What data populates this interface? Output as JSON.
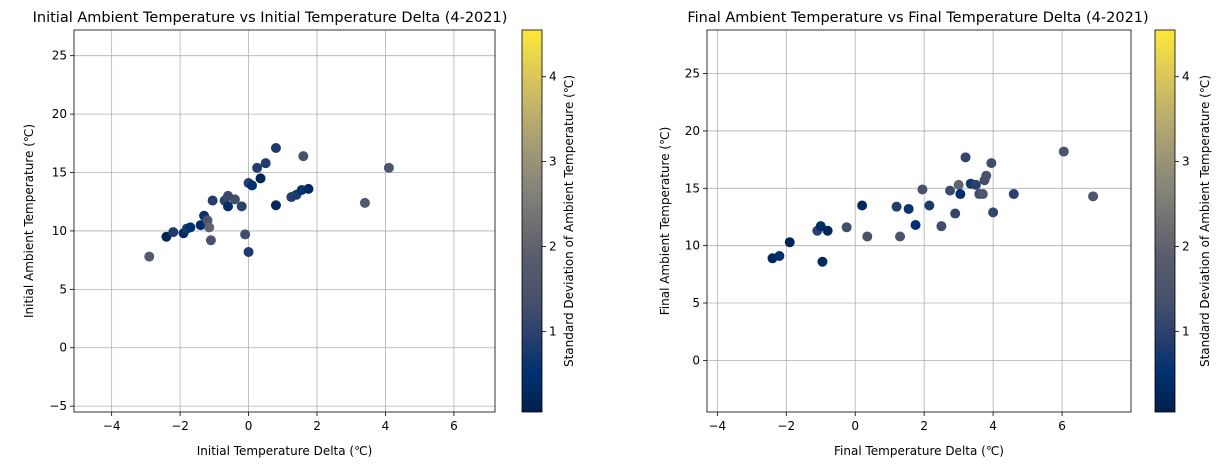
{
  "colorscale": {
    "name": "cividis",
    "stops": [
      "#00204d",
      "#00306f",
      "#2a3f6d",
      "#48526b",
      "#575c6d",
      "#707173",
      "#8a8779",
      "#a59c74",
      "#c3b369",
      "#e1cc55",
      "#fee838"
    ]
  },
  "chart_data": [
    {
      "type": "scatter",
      "title": "Initial Ambient Temperature vs Initial Temperature Delta (4-2021)",
      "xlabel": "Initial Temperature Delta (℃)",
      "ylabel": "Initial Ambient Temperature (℃)",
      "xlim": [
        -5.1,
        7.2
      ],
      "ylim": [
        -5.5,
        27.2
      ],
      "xticks": [
        -4,
        -2,
        0,
        2,
        4,
        6
      ],
      "yticks": [
        -5,
        0,
        5,
        10,
        15,
        20,
        25
      ],
      "grid": true,
      "colorbar": {
        "label": "Standard Deviation of Ambient Temperature (℃)",
        "range": [
          0.05,
          4.55
        ],
        "ticks": [
          1,
          2,
          3,
          4
        ]
      },
      "points": [
        {
          "x": -2.9,
          "y": 7.8,
          "c": 1.8
        },
        {
          "x": -2.4,
          "y": 9.5,
          "c": 0.15
        },
        {
          "x": -2.2,
          "y": 9.9,
          "c": 0.8
        },
        {
          "x": -1.9,
          "y": 9.8,
          "c": 0.3
        },
        {
          "x": -1.8,
          "y": 10.2,
          "c": 0.7
        },
        {
          "x": -1.7,
          "y": 10.3,
          "c": 0.5
        },
        {
          "x": -1.4,
          "y": 10.5,
          "c": 0.4
        },
        {
          "x": -1.3,
          "y": 11.3,
          "c": 0.6
        },
        {
          "x": -1.2,
          "y": 10.9,
          "c": 1.6
        },
        {
          "x": -1.15,
          "y": 10.3,
          "c": 2.0
        },
        {
          "x": -1.1,
          "y": 9.2,
          "c": 1.5
        },
        {
          "x": -1.05,
          "y": 12.6,
          "c": 0.9
        },
        {
          "x": -0.7,
          "y": 12.6,
          "c": 1.0
        },
        {
          "x": -0.6,
          "y": 12.1,
          "c": 0.4
        },
        {
          "x": -0.6,
          "y": 13.0,
          "c": 1.2
        },
        {
          "x": -0.4,
          "y": 12.7,
          "c": 1.3
        },
        {
          "x": -0.2,
          "y": 12.1,
          "c": 1.0
        },
        {
          "x": -0.1,
          "y": 9.7,
          "c": 1.3
        },
        {
          "x": 0.0,
          "y": 8.2,
          "c": 0.8
        },
        {
          "x": 0.0,
          "y": 14.1,
          "c": 0.9
        },
        {
          "x": 0.1,
          "y": 13.9,
          "c": 0.5
        },
        {
          "x": 0.25,
          "y": 15.4,
          "c": 0.9
        },
        {
          "x": 0.35,
          "y": 14.5,
          "c": 0.2
        },
        {
          "x": 0.5,
          "y": 15.8,
          "c": 0.9
        },
        {
          "x": 0.8,
          "y": 17.1,
          "c": 0.8
        },
        {
          "x": 0.8,
          "y": 12.2,
          "c": 0.25
        },
        {
          "x": 1.25,
          "y": 12.9,
          "c": 0.9
        },
        {
          "x": 1.4,
          "y": 13.1,
          "c": 0.8
        },
        {
          "x": 1.55,
          "y": 13.5,
          "c": 0.6
        },
        {
          "x": 1.6,
          "y": 16.4,
          "c": 1.4
        },
        {
          "x": 1.75,
          "y": 13.6,
          "c": 0.3
        },
        {
          "x": 3.4,
          "y": 12.4,
          "c": 1.7
        },
        {
          "x": 4.1,
          "y": 15.4,
          "c": 1.6
        }
      ]
    },
    {
      "type": "scatter",
      "title": "Final Ambient Temperature vs Final Temperature Delta (4-2021)",
      "xlabel": "Final Temperature Delta (℃)",
      "ylabel": "Final Ambient Temperature (℃)",
      "xlim": [
        -4.3,
        8.0
      ],
      "ylim": [
        -4.5,
        28.8
      ],
      "xticks": [
        -4,
        -2,
        0,
        2,
        4,
        6
      ],
      "yticks": [
        0,
        5,
        10,
        15,
        20,
        25
      ],
      "grid": true,
      "colorbar": {
        "label": "Standard Deviation of Ambient Temperature (℃)",
        "range": [
          0.05,
          4.55
        ],
        "ticks": [
          1,
          2,
          3,
          4
        ]
      },
      "points": [
        {
          "x": -2.4,
          "y": 8.9,
          "c": 0.3
        },
        {
          "x": -2.2,
          "y": 9.1,
          "c": 0.5
        },
        {
          "x": -1.9,
          "y": 10.3,
          "c": 0.2
        },
        {
          "x": -1.1,
          "y": 11.3,
          "c": 1.0
        },
        {
          "x": -1.0,
          "y": 11.7,
          "c": 0.4
        },
        {
          "x": -0.95,
          "y": 8.6,
          "c": 0.3
        },
        {
          "x": -0.8,
          "y": 11.3,
          "c": 0.2
        },
        {
          "x": -0.25,
          "y": 11.6,
          "c": 1.3
        },
        {
          "x": 0.2,
          "y": 13.5,
          "c": 0.3
        },
        {
          "x": 0.35,
          "y": 10.8,
          "c": 1.4
        },
        {
          "x": 1.2,
          "y": 13.4,
          "c": 0.9
        },
        {
          "x": 1.3,
          "y": 10.8,
          "c": 1.5
        },
        {
          "x": 1.55,
          "y": 13.2,
          "c": 0.6
        },
        {
          "x": 1.75,
          "y": 11.8,
          "c": 0.5
        },
        {
          "x": 1.95,
          "y": 14.9,
          "c": 1.4
        },
        {
          "x": 2.15,
          "y": 13.5,
          "c": 0.8
        },
        {
          "x": 2.5,
          "y": 11.7,
          "c": 1.3
        },
        {
          "x": 2.75,
          "y": 14.8,
          "c": 1.2
        },
        {
          "x": 2.9,
          "y": 12.8,
          "c": 1.1
        },
        {
          "x": 3.0,
          "y": 15.3,
          "c": 2.0
        },
        {
          "x": 3.05,
          "y": 14.5,
          "c": 0.5
        },
        {
          "x": 3.2,
          "y": 17.7,
          "c": 1.1
        },
        {
          "x": 3.35,
          "y": 15.4,
          "c": 0.7
        },
        {
          "x": 3.5,
          "y": 15.3,
          "c": 1.0
        },
        {
          "x": 3.6,
          "y": 14.5,
          "c": 1.3
        },
        {
          "x": 3.7,
          "y": 14.5,
          "c": 1.6
        },
        {
          "x": 3.75,
          "y": 15.7,
          "c": 1.3
        },
        {
          "x": 3.8,
          "y": 16.1,
          "c": 1.4
        },
        {
          "x": 3.95,
          "y": 17.2,
          "c": 1.3
        },
        {
          "x": 4.0,
          "y": 12.9,
          "c": 1.1
        },
        {
          "x": 4.6,
          "y": 14.5,
          "c": 1.0
        },
        {
          "x": 6.05,
          "y": 18.2,
          "c": 1.5
        },
        {
          "x": 6.9,
          "y": 14.3,
          "c": 1.6
        }
      ]
    }
  ]
}
